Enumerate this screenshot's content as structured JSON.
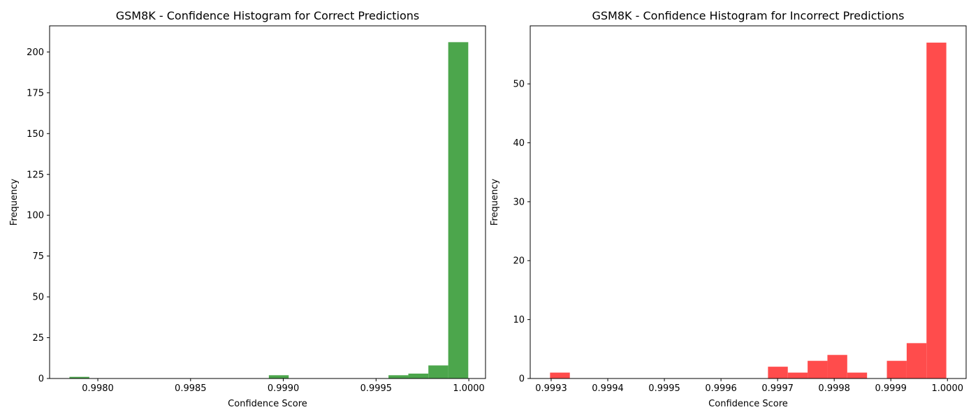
{
  "chart_data": [
    {
      "type": "bar",
      "title": "GSM8K - Confidence Histogram for Correct Predictions",
      "xlabel": "Confidence Score",
      "ylabel": "Frequency",
      "xlim": [
        0.99774,
        1.00009
      ],
      "ylim": [
        0,
        216
      ],
      "xticks": [
        0.998,
        0.9985,
        0.999,
        0.9995,
        1.0
      ],
      "xtick_labels": [
        "0.9980",
        "0.9985",
        "0.9990",
        "0.9995",
        "1.0000"
      ],
      "yticks": [
        0,
        25,
        50,
        75,
        100,
        125,
        150,
        175,
        200
      ],
      "ytick_labels": [
        "0",
        "25",
        "50",
        "75",
        "100",
        "125",
        "150",
        "175",
        "200"
      ],
      "bin_edges": [
        0.997847,
        0.997954,
        0.998062,
        0.998169,
        0.998277,
        0.998384,
        0.998492,
        0.998599,
        0.998707,
        0.998814,
        0.998922,
        0.999029,
        0.999137,
        0.999244,
        0.999352,
        0.999459,
        0.999567,
        0.999674,
        0.999782,
        0.999889,
        0.999997
      ],
      "values": [
        1,
        0,
        0,
        0,
        0,
        0,
        0,
        0,
        0,
        0,
        2,
        0,
        0,
        0,
        0,
        0,
        2,
        3,
        8,
        206
      ],
      "color": "#4ca64c",
      "grid": false
    },
    {
      "type": "bar",
      "title": "GSM8K - Confidence Histogram for Incorrect Predictions",
      "xlabel": "Confidence Score",
      "ylabel": "Frequency",
      "xlim": [
        0.999263,
        1.000033
      ],
      "ylim": [
        0,
        59.85
      ],
      "xticks": [
        0.9993,
        0.9994,
        0.9995,
        0.9996,
        0.9997,
        0.9998,
        0.9999,
        1.0
      ],
      "xtick_labels": [
        "0.9993",
        "0.9994",
        "0.9995",
        "0.9996",
        "0.9997",
        "0.9998",
        "0.9999",
        "1.0000"
      ],
      "yticks": [
        0,
        10,
        20,
        30,
        40,
        50
      ],
      "ytick_labels": [
        "0",
        "10",
        "20",
        "30",
        "40",
        "50"
      ],
      "bin_edges": [
        0.999298,
        0.999333,
        0.999368,
        0.999403,
        0.999438,
        0.999473,
        0.999508,
        0.999543,
        0.999578,
        0.999613,
        0.999648,
        0.999683,
        0.999718,
        0.999753,
        0.999788,
        0.999823,
        0.999858,
        0.999893,
        0.999928,
        0.999963,
        0.999998
      ],
      "values": [
        1,
        0,
        0,
        0,
        0,
        0,
        0,
        0,
        0,
        0,
        0,
        2,
        1,
        3,
        4,
        1,
        0,
        3,
        6,
        57
      ],
      "color": "#ff4c4c",
      "grid": false
    }
  ]
}
